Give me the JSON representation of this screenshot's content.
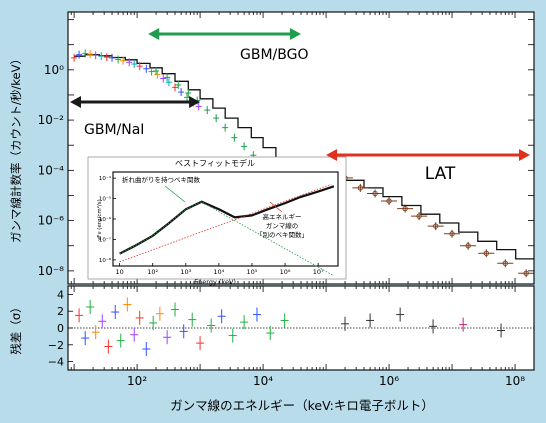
{
  "chart_data": {
    "type": "scatter",
    "xlabel": "ガンマ線のエネルギー（keV:キロ電子ボルト）",
    "ylabel": "ガンマ線計数率（カウント/秒/keV）",
    "ylabel_residual": "残差（σ）",
    "x_scale": "log",
    "xlim": [
      8,
      200000000
    ],
    "ylim": [
      3e-09,
      200
    ],
    "x_ticks": [
      {
        "value": 100,
        "label": "10²"
      },
      {
        "value": 10000,
        "label": "10⁴"
      },
      {
        "value": 1000000,
        "label": "10⁶"
      },
      {
        "value": 100000000,
        "label": "10⁸"
      }
    ],
    "y_ticks": [
      {
        "value": 1,
        "label": "10⁰"
      },
      {
        "value": 0.01,
        "label": "10⁻²"
      },
      {
        "value": 0.0001,
        "label": "10⁻⁴"
      },
      {
        "value": 1e-06,
        "label": "10⁻⁶"
      },
      {
        "value": 1e-08,
        "label": "10⁻⁸"
      }
    ],
    "residual_ylim": [
      -5,
      5
    ],
    "residual_ticks": [
      4,
      2,
      0,
      -2,
      -4
    ],
    "detector_ranges": [
      {
        "label": "GBM/NaI",
        "x_from": 8,
        "x_to": 1000,
        "color": "#1a1a1a"
      },
      {
        "label": "GBM/BGO",
        "x_from": 150,
        "x_to": 40000,
        "color": "#1e9e4a"
      },
      {
        "label": "LAT",
        "x_from": 100000,
        "x_to": 300000000,
        "color": "#e0301e"
      }
    ],
    "series": [
      {
        "name": "GBM/NaI",
        "color": "#222222",
        "x": [
          10,
          12,
          15,
          18,
          22,
          27,
          33,
          40,
          50,
          60,
          75,
          90,
          110,
          140,
          170,
          210,
          260,
          320,
          400,
          500,
          620,
          780,
          950
        ],
        "y": [
          3,
          4,
          4.5,
          4.2,
          3.8,
          3.5,
          3.2,
          3,
          2.6,
          2.3,
          2,
          1.7,
          1.4,
          1.1,
          0.85,
          0.65,
          0.45,
          0.32,
          0.2,
          0.13,
          0.08,
          0.05,
          0.035
        ]
      },
      {
        "name": "GBM/BGO",
        "color": "#1e9e4a",
        "x": [
          200,
          300,
          450,
          650,
          900,
          1300,
          1800,
          2500,
          3500,
          5000,
          7000,
          10000,
          14000,
          20000,
          28000
        ],
        "y": [
          0.9,
          0.5,
          0.25,
          0.12,
          0.06,
          0.025,
          0.012,
          0.005,
          0.002,
          0.0009,
          0.0004,
          0.00018,
          9e-05,
          4e-05,
          2e-05
        ]
      },
      {
        "name": "LAT",
        "color": "#7a3b1a",
        "x": [
          120000,
          200000,
          350000,
          600000,
          1000000,
          1800000,
          3000000,
          5500000,
          10000000,
          18000000,
          35000000,
          70000000,
          150000000
        ],
        "y": [
          8e-05,
          5e-05,
          2e-05,
          1.2e-05,
          6e-06,
          3e-06,
          1.5e-06,
          6e-07,
          3e-07,
          1e-07,
          5e-08,
          2e-08,
          8e-09
        ]
      }
    ],
    "model_steps": {
      "x": [
        10,
        15,
        25,
        40,
        65,
        100,
        160,
        250,
        400,
        650,
        1000,
        1600,
        2500,
        4000,
        6500,
        10000,
        16000,
        25000,
        40000,
        100000,
        200000,
        400000,
        800000,
        1600000,
        3200000,
        6400000,
        12800000,
        25600000,
        51200000,
        102400000,
        200000000
      ],
      "y": [
        3.5,
        4,
        3.6,
        3.1,
        2.5,
        1.8,
        1.2,
        0.7,
        0.35,
        0.16,
        0.07,
        0.03,
        0.012,
        0.005,
        0.002,
        0.0008,
        0.0003,
        0.00012,
        5e-05,
        6.5e-05,
        4e-05,
        2e-05,
        9e-06,
        4e-06,
        1.8e-06,
        8e-07,
        3.5e-07,
        1.5e-07,
        7e-08,
        3e-08,
        1.5e-08
      ]
    },
    "residuals": [
      {
        "x": 12,
        "y": 1.5,
        "color": "#ff3030"
      },
      {
        "x": 15,
        "y": -1.2,
        "color": "#3050ff"
      },
      {
        "x": 18,
        "y": 2.5,
        "color": "#20b040"
      },
      {
        "x": 22,
        "y": -0.5,
        "color": "#ff8a00"
      },
      {
        "x": 28,
        "y": 0.8,
        "color": "#a040ff"
      },
      {
        "x": 35,
        "y": -2.2,
        "color": "#ff3030"
      },
      {
        "x": 45,
        "y": 1.9,
        "color": "#3050ff"
      },
      {
        "x": 55,
        "y": -1.5,
        "color": "#20b040"
      },
      {
        "x": 70,
        "y": 2.8,
        "color": "#ff8a00"
      },
      {
        "x": 90,
        "y": -0.8,
        "color": "#a040ff"
      },
      {
        "x": 110,
        "y": 1.2,
        "color": "#ff3030"
      },
      {
        "x": 140,
        "y": -2.5,
        "color": "#3050ff"
      },
      {
        "x": 180,
        "y": 0.6,
        "color": "#20b040"
      },
      {
        "x": 230,
        "y": 1.7,
        "color": "#ff8a00"
      },
      {
        "x": 300,
        "y": -1.1,
        "color": "#a040ff"
      },
      {
        "x": 400,
        "y": 2.2,
        "color": "#20b040"
      },
      {
        "x": 550,
        "y": -0.4,
        "color": "#3050ff"
      },
      {
        "x": 750,
        "y": 1.0,
        "color": "#20b040"
      },
      {
        "x": 1000,
        "y": -1.8,
        "color": "#ff3030"
      },
      {
        "x": 1500,
        "y": 0.3,
        "color": "#20b040"
      },
      {
        "x": 2200,
        "y": 1.4,
        "color": "#3050ff"
      },
      {
        "x": 3300,
        "y": -0.9,
        "color": "#20b040"
      },
      {
        "x": 5000,
        "y": 0.7,
        "color": "#20b040"
      },
      {
        "x": 8000,
        "y": 1.6,
        "color": "#3050ff"
      },
      {
        "x": 13000,
        "y": -0.6,
        "color": "#20b040"
      },
      {
        "x": 22000,
        "y": 0.9,
        "color": "#20b040"
      },
      {
        "x": 200000,
        "y": 0.5,
        "color": "#333333"
      },
      {
        "x": 500000,
        "y": 0.9,
        "color": "#333333"
      },
      {
        "x": 1500000,
        "y": 1.6,
        "color": "#333333"
      },
      {
        "x": 5000000,
        "y": 0.2,
        "color": "#333333"
      },
      {
        "x": 15000000,
        "y": 0.4,
        "color": "#c02070"
      },
      {
        "x": 60000000,
        "y": -0.3,
        "color": "#333333"
      }
    ],
    "inset": {
      "title": "ベストフィットモデル",
      "xlabel": "Energy (keV)",
      "ylabel": "νFν (erg/cm²/s)",
      "x_ticks": [
        "10",
        "10²",
        "10³",
        "10⁴",
        "10⁵",
        "10⁶",
        "10⁷"
      ],
      "y_ticks": [
        "10⁻⁴",
        "10⁻⁵",
        "10⁻⁶",
        "10⁻⁷",
        "10⁻⁸"
      ],
      "components": [
        {
          "label": "折れ曲がりを持つベキ関数",
          "color": "#1e9e4a"
        },
        {
          "label": "高エネルギー ガンマ線の 「別のベキ関数」",
          "color": "#e0301e"
        }
      ],
      "total_model": {
        "x": [
          10,
          30,
          100,
          300,
          1000,
          3000,
          10000,
          30000,
          100000,
          300000,
          1000000,
          3000000,
          10000000,
          30000000
        ],
        "y": [
          2e-08,
          5e-08,
          1.5e-07,
          6e-07,
          3e-06,
          7e-06,
          3e-06,
          1.2e-06,
          1.5e-06,
          3e-06,
          6e-06,
          1.2e-05,
          2.2e-05,
          4e-05
        ]
      }
    }
  }
}
